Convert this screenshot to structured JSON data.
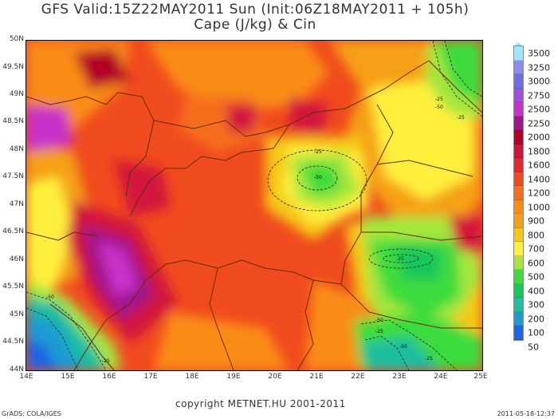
{
  "title_line1": "GFS Valid:15Z22MAY2011 Sun (Init:06Z18MAY2011 + 105h)",
  "title_line2": "Cape (J/kg) & Cin",
  "lat_labels": [
    "50N",
    "49.5N",
    "49N",
    "48.5N",
    "48N",
    "47.5N",
    "47N",
    "46.5N",
    "46N",
    "45.5N",
    "45N",
    "44.5N",
    "44N"
  ],
  "lon_labels": [
    "14E",
    "15E",
    "16E",
    "17E",
    "18E",
    "19E",
    "20E",
    "21E",
    "22E",
    "23E",
    "24E",
    "25E"
  ],
  "colorbar": {
    "values": [
      "3500",
      "3250",
      "3000",
      "2750",
      "2500",
      "2250",
      "2000",
      "1800",
      "1600",
      "1400",
      "1200",
      "1000",
      "900",
      "800",
      "700",
      "600",
      "500",
      "400",
      "300",
      "200",
      "100",
      "50"
    ],
    "colors": [
      "#a0e6ff",
      "#8c8cf0",
      "#6e6ee6",
      "#a050dc",
      "#c832c8",
      "#a0148c",
      "#b40028",
      "#d2143c",
      "#e6282d",
      "#f04b1e",
      "#f56e1e",
      "#fa8c14",
      "#f5a014",
      "#f5c814",
      "#fff03c",
      "#a5e63c",
      "#3cdc3c",
      "#14c85a",
      "#1ebea0",
      "#1e9bd2",
      "#1e64e6"
    ]
  },
  "cin_labels": [
    "-25",
    "-50",
    "-25",
    "-50",
    "-25",
    "-25",
    "-50",
    "-25",
    "-50",
    "-25",
    "-50",
    "-25"
  ],
  "copyright": "copyright METNET.HU 2001-2011",
  "grads_label": "GrADS: COLA/IGES",
  "timestamp": "2011-05-18-12:37",
  "colors": {
    "background": "#ffffff",
    "border": "#6a2a00"
  }
}
